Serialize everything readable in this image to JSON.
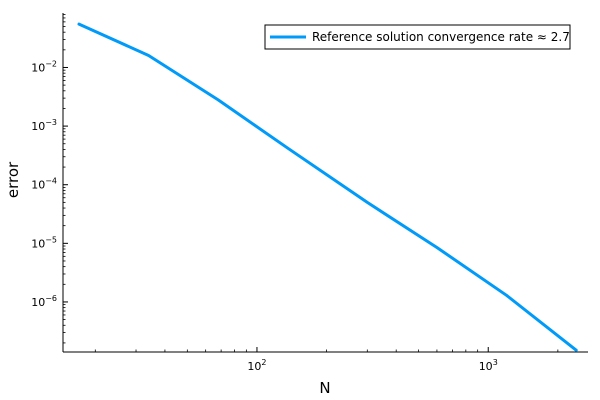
{
  "chart_data": {
    "type": "line",
    "xlabel": "N",
    "ylabel": "error",
    "xscale": "log",
    "yscale": "log",
    "xlim": [
      14.5,
      2700
    ],
    "ylim": [
      1.4e-07,
      0.085
    ],
    "grid": false,
    "legend_position": "top-right",
    "x_ticks": [
      {
        "value": 100,
        "base": "10",
        "exp": "2"
      },
      {
        "value": 1000,
        "base": "10",
        "exp": "3"
      }
    ],
    "y_ticks": [
      {
        "value": 0.01,
        "base": "10",
        "exp": "−2"
      },
      {
        "value": 0.001,
        "base": "10",
        "exp": "−3"
      },
      {
        "value": 0.0001,
        "base": "10",
        "exp": "−4"
      },
      {
        "value": 1e-05,
        "base": "10",
        "exp": "−5"
      },
      {
        "value": 1e-06,
        "base": "10",
        "exp": "−6"
      }
    ],
    "series": [
      {
        "name": "Reference solution convergence rate ≈ 2.7",
        "color": "#009af9",
        "x": [
          17,
          34,
          68,
          136,
          300,
          600,
          1200,
          2400
        ],
        "y": [
          0.055,
          0.016,
          0.0028,
          0.00042,
          5e-05,
          8.5e-06,
          1.3e-06,
          1.5e-07
        ]
      }
    ]
  }
}
